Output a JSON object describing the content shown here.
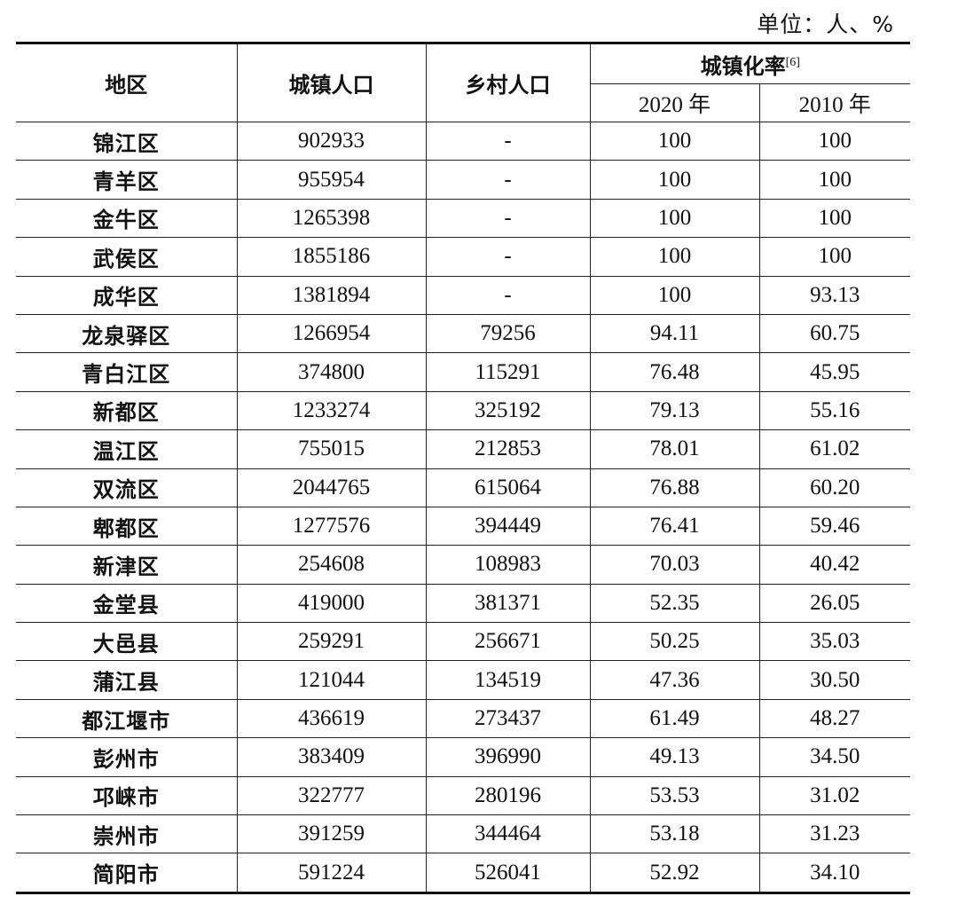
{
  "unit_label": "单位：人、%",
  "header": {
    "region": "地区",
    "urban_pop": "城镇人口",
    "rural_pop": "乡村人口",
    "urbanization_rate": "城镇化率",
    "footnote_ref": "[6]",
    "year_2020": "2020",
    "year_2010": "2010",
    "year_suffix": "年"
  },
  "rows": [
    {
      "region": "锦江区",
      "urban": "902933",
      "rural": "-",
      "rate2020": "100",
      "rate2010": "100"
    },
    {
      "region": "青羊区",
      "urban": "955954",
      "rural": "-",
      "rate2020": "100",
      "rate2010": "100"
    },
    {
      "region": "金牛区",
      "urban": "1265398",
      "rural": "-",
      "rate2020": "100",
      "rate2010": "100"
    },
    {
      "region": "武侯区",
      "urban": "1855186",
      "rural": "-",
      "rate2020": "100",
      "rate2010": "100"
    },
    {
      "region": "成华区",
      "urban": "1381894",
      "rural": "-",
      "rate2020": "100",
      "rate2010": "93.13"
    },
    {
      "region": "龙泉驿区",
      "urban": "1266954",
      "rural": "79256",
      "rate2020": "94.11",
      "rate2010": "60.75"
    },
    {
      "region": "青白江区",
      "urban": "374800",
      "rural": "115291",
      "rate2020": "76.48",
      "rate2010": "45.95"
    },
    {
      "region": "新都区",
      "urban": "1233274",
      "rural": "325192",
      "rate2020": "79.13",
      "rate2010": "55.16"
    },
    {
      "region": "温江区",
      "urban": "755015",
      "rural": "212853",
      "rate2020": "78.01",
      "rate2010": "61.02"
    },
    {
      "region": "双流区",
      "urban": "2044765",
      "rural": "615064",
      "rate2020": "76.88",
      "rate2010": "60.20"
    },
    {
      "region": "郫都区",
      "urban": "1277576",
      "rural": "394449",
      "rate2020": "76.41",
      "rate2010": "59.46"
    },
    {
      "region": "新津区",
      "urban": "254608",
      "rural": "108983",
      "rate2020": "70.03",
      "rate2010": "40.42"
    },
    {
      "region": "金堂县",
      "urban": "419000",
      "rural": "381371",
      "rate2020": "52.35",
      "rate2010": "26.05"
    },
    {
      "region": "大邑县",
      "urban": "259291",
      "rural": "256671",
      "rate2020": "50.25",
      "rate2010": "35.03"
    },
    {
      "region": "蒲江县",
      "urban": "121044",
      "rural": "134519",
      "rate2020": "47.36",
      "rate2010": "30.50"
    },
    {
      "region": "都江堰市",
      "urban": "436619",
      "rural": "273437",
      "rate2020": "61.49",
      "rate2010": "48.27"
    },
    {
      "region": "彭州市",
      "urban": "383409",
      "rural": "396990",
      "rate2020": "49.13",
      "rate2010": "34.50"
    },
    {
      "region": "邛崃市",
      "urban": "322777",
      "rural": "280196",
      "rate2020": "53.53",
      "rate2010": "31.02"
    },
    {
      "region": "崇州市",
      "urban": "391259",
      "rural": "344464",
      "rate2020": "53.18",
      "rate2010": "31.23"
    },
    {
      "region": "简阳市",
      "urban": "591224",
      "rural": "526041",
      "rate2020": "52.92",
      "rate2010": "34.10"
    }
  ]
}
